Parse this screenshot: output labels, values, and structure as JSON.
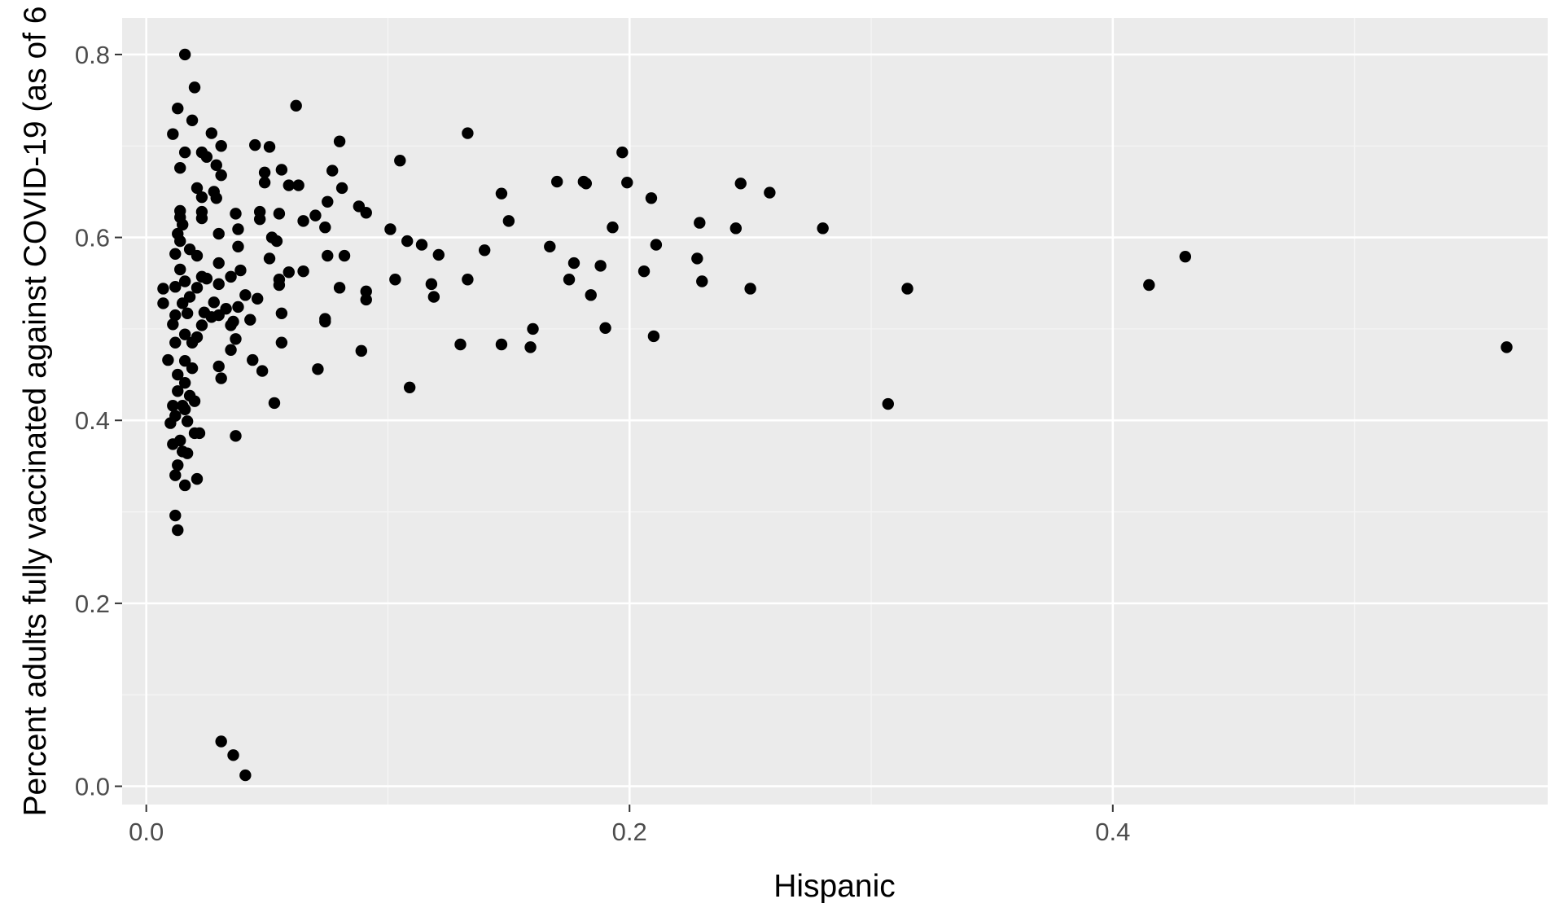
{
  "colors": {
    "panel_background": "#ebebeb",
    "grid_major": "#ffffff",
    "grid_minor": "#f5f5f5",
    "point": "#000000",
    "tick_label": "#4d4d4d",
    "axis_title": "#000000"
  },
  "chart_data": {
    "type": "scatter",
    "title": "",
    "xlabel": "Hispanic",
    "ylabel": "Percent adults fully vaccinated against COVID-19 (as of 6",
    "xlim": [
      -0.01,
      0.58
    ],
    "ylim": [
      -0.02,
      0.84
    ],
    "x_ticks": [
      0.0,
      0.2,
      0.4
    ],
    "x_tick_labels": [
      "0.0",
      "0.2",
      "0.4"
    ],
    "y_ticks": [
      0.0,
      0.2,
      0.4,
      0.6,
      0.8
    ],
    "y_tick_labels": [
      "0.0",
      "0.2",
      "0.4",
      "0.6",
      "0.8"
    ],
    "grid": true,
    "legend": "none",
    "points": [
      [
        0.016,
        0.8
      ],
      [
        0.02,
        0.764
      ],
      [
        0.013,
        0.741
      ],
      [
        0.062,
        0.744
      ],
      [
        0.011,
        0.713
      ],
      [
        0.019,
        0.728
      ],
      [
        0.027,
        0.714
      ],
      [
        0.133,
        0.714
      ],
      [
        0.08,
        0.705
      ],
      [
        0.045,
        0.701
      ],
      [
        0.051,
        0.699
      ],
      [
        0.031,
        0.7
      ],
      [
        0.016,
        0.693
      ],
      [
        0.023,
        0.693
      ],
      [
        0.025,
        0.688
      ],
      [
        0.197,
        0.693
      ],
      [
        0.105,
        0.684
      ],
      [
        0.014,
        0.676
      ],
      [
        0.029,
        0.679
      ],
      [
        0.056,
        0.674
      ],
      [
        0.049,
        0.671
      ],
      [
        0.077,
        0.673
      ],
      [
        0.031,
        0.668
      ],
      [
        0.17,
        0.661
      ],
      [
        0.181,
        0.661
      ],
      [
        0.199,
        0.66
      ],
      [
        0.246,
        0.659
      ],
      [
        0.182,
        0.659
      ],
      [
        0.049,
        0.66
      ],
      [
        0.059,
        0.657
      ],
      [
        0.063,
        0.657
      ],
      [
        0.081,
        0.654
      ],
      [
        0.021,
        0.654
      ],
      [
        0.028,
        0.65
      ],
      [
        0.147,
        0.648
      ],
      [
        0.258,
        0.649
      ],
      [
        0.023,
        0.644
      ],
      [
        0.029,
        0.643
      ],
      [
        0.209,
        0.643
      ],
      [
        0.075,
        0.639
      ],
      [
        0.014,
        0.629
      ],
      [
        0.088,
        0.634
      ],
      [
        0.091,
        0.627
      ],
      [
        0.023,
        0.628
      ],
      [
        0.037,
        0.626
      ],
      [
        0.047,
        0.628
      ],
      [
        0.055,
        0.626
      ],
      [
        0.014,
        0.622
      ],
      [
        0.07,
        0.624
      ],
      [
        0.065,
        0.618
      ],
      [
        0.023,
        0.621
      ],
      [
        0.047,
        0.62
      ],
      [
        0.15,
        0.618
      ],
      [
        0.015,
        0.614
      ],
      [
        0.038,
        0.609
      ],
      [
        0.074,
        0.611
      ],
      [
        0.101,
        0.609
      ],
      [
        0.193,
        0.611
      ],
      [
        0.229,
        0.616
      ],
      [
        0.244,
        0.61
      ],
      [
        0.28,
        0.61
      ],
      [
        0.013,
        0.604
      ],
      [
        0.03,
        0.604
      ],
      [
        0.014,
        0.596
      ],
      [
        0.054,
        0.596
      ],
      [
        0.052,
        0.6
      ],
      [
        0.108,
        0.596
      ],
      [
        0.114,
        0.592
      ],
      [
        0.038,
        0.59
      ],
      [
        0.018,
        0.587
      ],
      [
        0.012,
        0.582
      ],
      [
        0.021,
        0.58
      ],
      [
        0.051,
        0.577
      ],
      [
        0.167,
        0.59
      ],
      [
        0.14,
        0.586
      ],
      [
        0.211,
        0.592
      ],
      [
        0.121,
        0.581
      ],
      [
        0.075,
        0.58
      ],
      [
        0.082,
        0.58
      ],
      [
        0.228,
        0.577
      ],
      [
        0.177,
        0.572
      ],
      [
        0.188,
        0.569
      ],
      [
        0.03,
        0.572
      ],
      [
        0.014,
        0.565
      ],
      [
        0.023,
        0.557
      ],
      [
        0.039,
        0.564
      ],
      [
        0.065,
        0.563
      ],
      [
        0.059,
        0.562
      ],
      [
        0.206,
        0.563
      ],
      [
        0.035,
        0.557
      ],
      [
        0.016,
        0.552
      ],
      [
        0.025,
        0.555
      ],
      [
        0.055,
        0.554
      ],
      [
        0.103,
        0.554
      ],
      [
        0.133,
        0.554
      ],
      [
        0.175,
        0.554
      ],
      [
        0.23,
        0.552
      ],
      [
        0.118,
        0.549
      ],
      [
        0.012,
        0.546
      ],
      [
        0.007,
        0.544
      ],
      [
        0.021,
        0.545
      ],
      [
        0.03,
        0.549
      ],
      [
        0.055,
        0.548
      ],
      [
        0.08,
        0.545
      ],
      [
        0.091,
        0.541
      ],
      [
        0.25,
        0.544
      ],
      [
        0.315,
        0.544
      ],
      [
        0.415,
        0.548
      ],
      [
        0.43,
        0.579
      ],
      [
        0.184,
        0.537
      ],
      [
        0.119,
        0.535
      ],
      [
        0.018,
        0.535
      ],
      [
        0.041,
        0.537
      ],
      [
        0.046,
        0.533
      ],
      [
        0.091,
        0.532
      ],
      [
        0.007,
        0.528
      ],
      [
        0.015,
        0.528
      ],
      [
        0.028,
        0.529
      ],
      [
        0.038,
        0.524
      ],
      [
        0.033,
        0.522
      ],
      [
        0.024,
        0.518
      ],
      [
        0.012,
        0.515
      ],
      [
        0.017,
        0.517
      ],
      [
        0.056,
        0.517
      ],
      [
        0.03,
        0.515
      ],
      [
        0.027,
        0.513
      ],
      [
        0.043,
        0.51
      ],
      [
        0.074,
        0.511
      ],
      [
        0.074,
        0.508
      ],
      [
        0.011,
        0.505
      ],
      [
        0.023,
        0.504
      ],
      [
        0.035,
        0.504
      ],
      [
        0.036,
        0.508
      ],
      [
        0.016,
        0.494
      ],
      [
        0.021,
        0.491
      ],
      [
        0.019,
        0.485
      ],
      [
        0.16,
        0.5
      ],
      [
        0.19,
        0.501
      ],
      [
        0.012,
        0.485
      ],
      [
        0.035,
        0.477
      ],
      [
        0.037,
        0.489
      ],
      [
        0.056,
        0.485
      ],
      [
        0.089,
        0.476
      ],
      [
        0.13,
        0.483
      ],
      [
        0.147,
        0.483
      ],
      [
        0.159,
        0.48
      ],
      [
        0.21,
        0.492
      ],
      [
        0.563,
        0.48
      ],
      [
        0.009,
        0.466
      ],
      [
        0.016,
        0.465
      ],
      [
        0.019,
        0.457
      ],
      [
        0.03,
        0.459
      ],
      [
        0.044,
        0.466
      ],
      [
        0.048,
        0.454
      ],
      [
        0.071,
        0.456
      ],
      [
        0.031,
        0.446
      ],
      [
        0.013,
        0.45
      ],
      [
        0.016,
        0.441
      ],
      [
        0.018,
        0.427
      ],
      [
        0.013,
        0.432
      ],
      [
        0.109,
        0.436
      ],
      [
        0.053,
        0.419
      ],
      [
        0.307,
        0.418
      ],
      [
        0.011,
        0.416
      ],
      [
        0.015,
        0.416
      ],
      [
        0.02,
        0.421
      ],
      [
        0.012,
        0.405
      ],
      [
        0.016,
        0.412
      ],
      [
        0.017,
        0.399
      ],
      [
        0.01,
        0.397
      ],
      [
        0.02,
        0.386
      ],
      [
        0.022,
        0.386
      ],
      [
        0.014,
        0.378
      ],
      [
        0.037,
        0.383
      ],
      [
        0.011,
        0.374
      ],
      [
        0.015,
        0.366
      ],
      [
        0.017,
        0.364
      ],
      [
        0.013,
        0.351
      ],
      [
        0.012,
        0.34
      ],
      [
        0.021,
        0.336
      ],
      [
        0.016,
        0.329
      ],
      [
        0.012,
        0.296
      ],
      [
        0.013,
        0.28
      ],
      [
        0.031,
        0.049
      ],
      [
        0.036,
        0.034
      ],
      [
        0.041,
        0.012
      ]
    ]
  }
}
